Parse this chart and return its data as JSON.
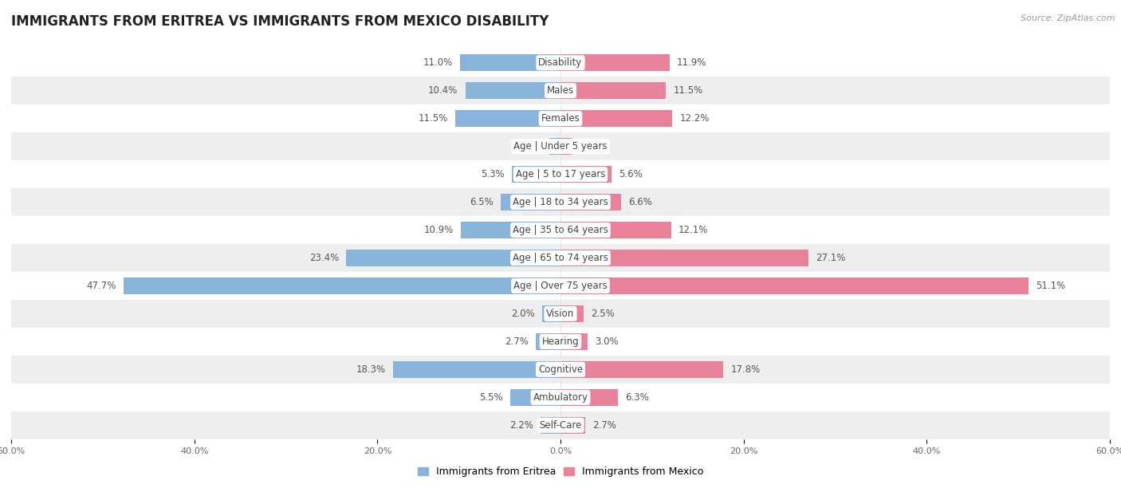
{
  "title": "IMMIGRANTS FROM ERITREA VS IMMIGRANTS FROM MEXICO DISABILITY",
  "source": "Source: ZipAtlas.com",
  "categories": [
    "Disability",
    "Males",
    "Females",
    "Age | Under 5 years",
    "Age | 5 to 17 years",
    "Age | 18 to 34 years",
    "Age | 35 to 64 years",
    "Age | 65 to 74 years",
    "Age | Over 75 years",
    "Vision",
    "Hearing",
    "Cognitive",
    "Ambulatory",
    "Self-Care"
  ],
  "eritrea_values": [
    11.0,
    10.4,
    11.5,
    1.2,
    5.3,
    6.5,
    10.9,
    23.4,
    47.7,
    2.0,
    2.7,
    18.3,
    5.5,
    2.2
  ],
  "mexico_values": [
    11.9,
    11.5,
    12.2,
    1.2,
    5.6,
    6.6,
    12.1,
    27.1,
    51.1,
    2.5,
    3.0,
    17.8,
    6.3,
    2.7
  ],
  "eritrea_color": "#89b4d9",
  "mexico_color": "#e8829a",
  "axis_limit": 60.0,
  "background_color": "#ffffff",
  "row_bg_light": "#ffffff",
  "row_bg_dark": "#eeeeee",
  "title_fontsize": 12,
  "label_fontsize": 8.5,
  "tick_fontsize": 8,
  "legend_fontsize": 9,
  "source_fontsize": 8
}
